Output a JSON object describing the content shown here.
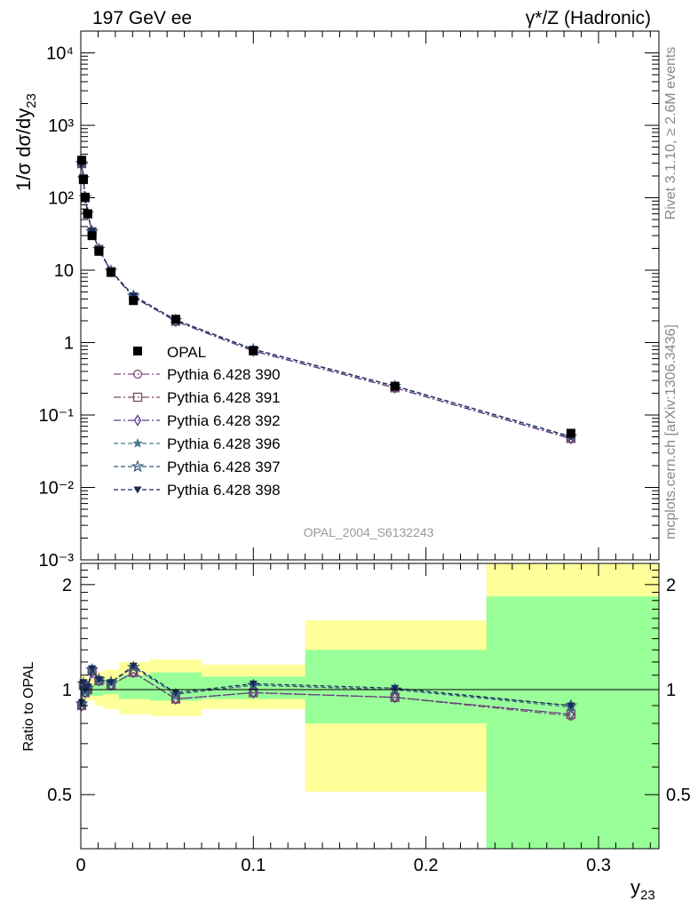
{
  "header": {
    "left": "197 GeV ee",
    "right": "γ*/Z (Hadronic)"
  },
  "side": {
    "rivet": "Rivet 3.1.10, ≥ 2.6M events",
    "mcplots": "mcplots.cern.ch [arXiv:1306.3436]"
  },
  "chart_data": {
    "type": "line",
    "analysis_id": "OPAL_2004_S6132243",
    "xlabel": "y23",
    "ylabel": "1/σ dσ/dy23",
    "ratio_ylabel": "Ratio to OPAL",
    "xlim": [
      0,
      0.335
    ],
    "ylim": [
      0.001,
      20000
    ],
    "yscale": "log",
    "ratio_ylim": [
      0.35,
      2.3
    ],
    "ratio_yscale": "log",
    "x_ticks": [
      "0",
      "0.1",
      "0.2",
      "0.3"
    ],
    "y_ticks": [
      "10⁻³",
      "10⁻²",
      "10⁻¹",
      "1",
      "10",
      "10²",
      "10³",
      "10⁴"
    ],
    "ratio_ticks": [
      "0.5",
      "1",
      "2"
    ],
    "legend_position": "center-left",
    "data": {
      "name": "OPAL",
      "x": [
        0.0005,
        0.0015,
        0.0025,
        0.004,
        0.0065,
        0.0105,
        0.0175,
        0.0305,
        0.055,
        0.1,
        0.182,
        0.284
      ],
      "y": [
        330,
        178,
        102,
        60,
        30,
        18.2,
        9.3,
        3.8,
        2.1,
        0.78,
        0.25,
        0.056
      ]
    },
    "data_bands": {
      "edges": [
        0,
        0.001,
        0.002,
        0.003,
        0.005,
        0.008,
        0.013,
        0.022,
        0.04,
        0.07,
        0.13,
        0.235,
        0.335
      ],
      "inner": [
        [
          0.95,
          1.05
        ],
        [
          0.95,
          1.05
        ],
        [
          0.96,
          1.04
        ],
        [
          0.96,
          1.04
        ],
        [
          0.96,
          1.04
        ],
        [
          0.96,
          1.06
        ],
        [
          0.97,
          1.07
        ],
        [
          0.94,
          1.1
        ],
        [
          0.93,
          1.12
        ],
        [
          0.94,
          1.09
        ],
        [
          0.8,
          1.3
        ],
        [
          0.35,
          1.85
        ]
      ],
      "outer": [
        [
          0.9,
          1.1
        ],
        [
          0.9,
          1.1
        ],
        [
          0.92,
          1.1
        ],
        [
          0.93,
          1.08
        ],
        [
          0.93,
          1.08
        ],
        [
          0.9,
          1.12
        ],
        [
          0.88,
          1.14
        ],
        [
          0.85,
          1.2
        ],
        [
          0.84,
          1.22
        ],
        [
          0.88,
          1.18
        ],
        [
          0.51,
          1.58
        ],
        [
          0.35,
          2.3
        ]
      ]
    },
    "series": [
      {
        "name": "Pythia 6.428 390",
        "color": "#7e4a7c",
        "marker": "circle-open",
        "dash": "dashdot",
        "x": [
          0.0005,
          0.0015,
          0.0025,
          0.004,
          0.0065,
          0.0105,
          0.0175,
          0.0305,
          0.055,
          0.1,
          0.182,
          0.284
        ],
        "ratio": [
          0.9,
          1.03,
          0.98,
          1.0,
          1.13,
          1.06,
          1.03,
          1.12,
          0.94,
          0.98,
          0.95,
          0.84
        ]
      },
      {
        "name": "Pythia 6.428 391",
        "color": "#7e4a5c",
        "marker": "square-open",
        "dash": "dashdot",
        "x": [
          0.0005,
          0.0015,
          0.0025,
          0.004,
          0.0065,
          0.0105,
          0.0175,
          0.0305,
          0.055,
          0.1,
          0.182,
          0.284
        ],
        "ratio": [
          0.9,
          1.03,
          0.98,
          1.0,
          1.13,
          1.06,
          1.03,
          1.12,
          0.94,
          0.98,
          0.95,
          0.85
        ]
      },
      {
        "name": "Pythia 6.428 392",
        "color": "#5a3a8c",
        "marker": "diamond-open",
        "dash": "dashdot",
        "x": [
          0.0005,
          0.0015,
          0.0025,
          0.004,
          0.0065,
          0.0105,
          0.0175,
          0.0305,
          0.055,
          0.1,
          0.182,
          0.284
        ],
        "ratio": [
          0.9,
          1.02,
          0.98,
          1.0,
          1.12,
          1.06,
          1.03,
          1.12,
          0.94,
          0.98,
          0.95,
          0.85
        ]
      },
      {
        "name": "Pythia 6.428 396",
        "color": "#4a7a8a",
        "marker": "star-filled",
        "dash": "dashed",
        "x": [
          0.0005,
          0.0015,
          0.0025,
          0.004,
          0.0065,
          0.0105,
          0.0175,
          0.0305,
          0.055,
          0.1,
          0.182,
          0.284
        ],
        "ratio": [
          0.91,
          1.04,
          0.99,
          1.01,
          1.14,
          1.07,
          1.05,
          1.16,
          0.97,
          1.03,
          1.0,
          0.89
        ]
      },
      {
        "name": "Pythia 6.428 397",
        "color": "#3a5a7a",
        "marker": "star-open",
        "dash": "dashed",
        "x": [
          0.0005,
          0.0015,
          0.0025,
          0.004,
          0.0065,
          0.0105,
          0.0175,
          0.0305,
          0.055,
          0.1,
          0.182,
          0.284
        ],
        "ratio": [
          0.91,
          1.04,
          0.99,
          1.01,
          1.14,
          1.07,
          1.05,
          1.16,
          0.97,
          1.03,
          1.0,
          0.9
        ]
      },
      {
        "name": "Pythia 6.428 398",
        "color": "#1a2a5a",
        "marker": "triangle-down-filled",
        "dash": "dashed",
        "x": [
          0.0005,
          0.0015,
          0.0025,
          0.004,
          0.0065,
          0.0105,
          0.0175,
          0.0305,
          0.055,
          0.1,
          0.182,
          0.284
        ],
        "ratio": [
          0.92,
          1.05,
          1.0,
          1.02,
          1.15,
          1.07,
          1.05,
          1.17,
          0.98,
          1.04,
          1.01,
          0.9
        ]
      }
    ]
  }
}
